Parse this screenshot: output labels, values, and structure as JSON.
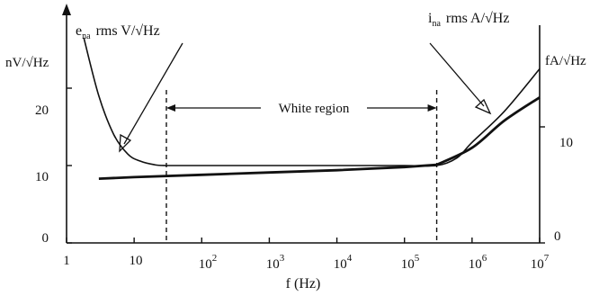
{
  "chart_data": {
    "type": "line",
    "xscale": "log",
    "xlim": [
      1,
      10000000
    ],
    "ylim_left": [
      0,
      30
    ],
    "ylim_right": [
      0,
      20
    ],
    "xlabel": "f (Hz)",
    "ylabel_left": "nV/√Hz",
    "ylabel_right": "fA/√Hz",
    "x_tick_labels": [
      "1",
      "10",
      "10",
      "10",
      "10",
      "10",
      "10",
      "10"
    ],
    "x_tick_exponents": [
      "",
      "",
      "2",
      "3",
      "4",
      "5",
      "6",
      "7"
    ],
    "y_left_ticks": [
      "0",
      "10",
      "20"
    ],
    "y_right_ticks": [
      "0",
      "10"
    ],
    "annotations": {
      "ena_sym": "e",
      "ena_sub": "na",
      "ena_unit": "rms V/√Hz",
      "ina_sym": "i",
      "ina_sub": "na",
      "ina_unit": "rms A/√Hz",
      "white_region": "White region"
    },
    "white_region_bounds": [
      30,
      300000
    ],
    "series": [
      {
        "x": [
          1.8,
          3,
          5,
          8,
          12,
          20,
          30,
          100,
          1000,
          10000,
          100000,
          300000,
          600000,
          1000000,
          3000000,
          10000000
        ],
        "y": [
          26.5,
          19,
          14,
          11.5,
          10.6,
          10.1,
          10,
          10,
          10,
          10,
          10,
          10,
          11,
          13,
          17,
          22.5
        ]
      },
      {
        "x": [
          3,
          10,
          100,
          1000,
          10000,
          100000,
          300000,
          1000000,
          3000000,
          10000000
        ],
        "y": [
          8.3,
          8.5,
          8.8,
          9.1,
          9.4,
          9.8,
          10.1,
          12.3,
          15.8,
          18.8
        ]
      }
    ],
    "grid": false
  }
}
